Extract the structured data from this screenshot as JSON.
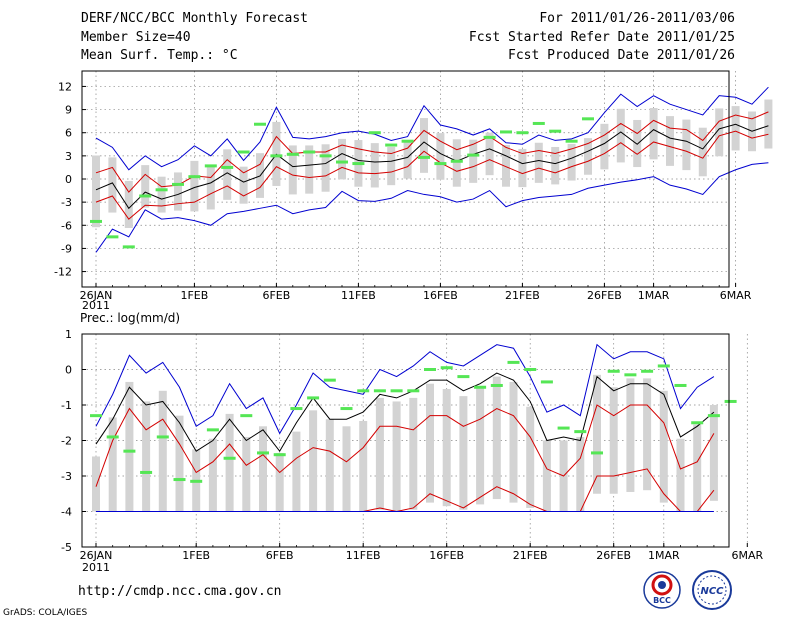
{
  "header": {
    "left": [
      "DERF/NCC/BCC Monthly Forecast",
      "Member Size=40",
      "Mean Surf. Temp.: °C"
    ],
    "right": [
      "For 2011/01/26-2011/03/06",
      "Fcst Started Refer Date 2011/01/25",
      "Fcst Produced Date 2011/01/26"
    ]
  },
  "footer": {
    "url": "http://cmdp.ncc.cma.gov.cn",
    "credit": "GrADS: COLA/IGES",
    "logo1_text": "BCC",
    "logo2_text": "NCC"
  },
  "colors": {
    "grid": "#888888",
    "box": "#d3d3d3",
    "obs": "#55e655",
    "mean": "#000000",
    "spread": "#d40000",
    "envelope": "#0000d0"
  },
  "chart_data": [
    {
      "type": "line",
      "title": "Mean Surf. Temp.: °C",
      "x_ticks": [
        "26JAN",
        "1FEB",
        "6FEB",
        "11FEB",
        "16FEB",
        "21FEB",
        "26FEB",
        "1MAR",
        "6MAR"
      ],
      "x_tick_days": [
        0,
        6,
        11,
        16,
        21,
        26,
        31,
        34,
        39
      ],
      "year_label": "2011",
      "ylim": [
        -14,
        14
      ],
      "yticks": [
        -12,
        -9,
        -6,
        -3,
        0,
        3,
        6,
        9,
        12
      ],
      "series": [
        {
          "name": "ensemble max",
          "values": [
            5.3,
            4.1,
            1.2,
            3.0,
            1.6,
            2.5,
            4.3,
            3.0,
            5.2,
            2.4,
            4.8,
            9.3,
            5.4,
            5.2,
            5.5,
            6.0,
            6.2,
            5.8,
            5.0,
            5.5,
            9.5,
            7.0,
            6.5,
            5.7,
            6.5,
            4.7,
            4.5,
            5.7,
            5.0,
            5.2,
            6.0,
            8.6,
            11.0,
            9.4,
            10.8,
            9.7,
            9.0,
            8.3,
            10.8,
            10.6,
            9.7,
            11.9
          ]
        },
        {
          "name": "upper spread",
          "values": [
            0.8,
            1.5,
            -1.7,
            0.6,
            -1.0,
            -0.8,
            0.4,
            0.2,
            2.5,
            0.8,
            1.9,
            5.5,
            3.3,
            3.5,
            3.5,
            4.4,
            3.9,
            3.5,
            3.3,
            4.0,
            6.3,
            4.9,
            3.8,
            4.5,
            5.5,
            4.1,
            3.3,
            3.7,
            3.3,
            3.9,
            4.6,
            5.7,
            7.2,
            5.9,
            7.6,
            6.6,
            6.4,
            5.0,
            7.5,
            8.3,
            7.8,
            8.7
          ]
        },
        {
          "name": "ensemble mean",
          "values": [
            -1.4,
            -0.5,
            -3.8,
            -1.7,
            -2.6,
            -2.0,
            -1.1,
            -0.5,
            0.8,
            -0.4,
            0.4,
            3.2,
            1.6,
            1.8,
            2.0,
            3.3,
            2.4,
            2.2,
            2.3,
            2.8,
            4.8,
            3.3,
            2.3,
            3.2,
            3.9,
            3.0,
            2.0,
            2.4,
            2.0,
            2.7,
            3.6,
            4.6,
            6.1,
            4.5,
            6.4,
            5.3,
            4.9,
            3.9,
            6.5,
            7.1,
            6.2,
            6.9
          ]
        },
        {
          "name": "lower spread",
          "values": [
            -3.0,
            -2.2,
            -5.2,
            -3.4,
            -3.5,
            -3.2,
            -3.0,
            -1.9,
            -0.9,
            -2.2,
            -1.1,
            1.6,
            0.5,
            0.2,
            0.4,
            1.5,
            0.8,
            0.7,
            0.9,
            1.6,
            3.6,
            2.1,
            1.0,
            1.6,
            2.5,
            1.6,
            0.7,
            1.4,
            0.8,
            1.6,
            2.3,
            3.3,
            4.7,
            3.2,
            4.8,
            4.2,
            3.6,
            2.7,
            5.6,
            6.2,
            5.3,
            5.8
          ]
        },
        {
          "name": "ensemble min",
          "values": [
            -9.5,
            -6.5,
            -7.5,
            -4.0,
            -5.2,
            -5.0,
            -5.4,
            -6.0,
            -4.5,
            -4.2,
            -3.8,
            -3.4,
            -4.5,
            -4.0,
            -3.7,
            -1.6,
            -2.8,
            -2.9,
            -2.5,
            -1.5,
            -2.0,
            -2.3,
            -3.0,
            -2.6,
            -1.5,
            -3.6,
            -2.8,
            -2.4,
            -2.2,
            -2.0,
            -1.2,
            -0.8,
            -0.4,
            -0.1,
            0.3,
            -0.8,
            -1.3,
            -2.0,
            0.3,
            1.2,
            1.9,
            2.1
          ]
        },
        {
          "name": "observed",
          "values": [
            -5.5,
            -7.5,
            -8.8,
            -2.2,
            -1.4,
            -0.7,
            0.3,
            1.7,
            1.5,
            3.5,
            7.1,
            3.0,
            3.2,
            3.5,
            3.0,
            2.2,
            2.0,
            6.0,
            4.4,
            4.9,
            2.8,
            2.0,
            2.3,
            3.1,
            5.4,
            6.1,
            6.0,
            7.2,
            6.2,
            4.9,
            7.8
          ]
        }
      ]
    },
    {
      "type": "line",
      "title": "Prec.: log(mm/d)",
      "x_ticks": [
        "26JAN",
        "1FEB",
        "6FEB",
        "11FEB",
        "16FEB",
        "21FEB",
        "26FEB",
        "1MAR",
        "6MAR"
      ],
      "x_tick_days": [
        0,
        6,
        11,
        16,
        21,
        26,
        31,
        34,
        39
      ],
      "year_label": "2011",
      "ylim": [
        -5,
        1
      ],
      "yticks": [
        -5,
        -4,
        -3,
        -2,
        -1,
        0,
        1
      ],
      "series": [
        {
          "name": "ensemble max",
          "values": [
            -1.6,
            -0.7,
            0.4,
            -0.1,
            0.2,
            -0.5,
            -1.6,
            -1.3,
            -0.4,
            -1.1,
            -0.8,
            -1.8,
            -1.0,
            -0.1,
            -0.5,
            -0.6,
            -0.7,
            0.0,
            -0.2,
            0.1,
            0.5,
            0.2,
            0.1,
            0.4,
            0.7,
            0.6,
            -0.2,
            -1.2,
            -1.0,
            -1.3,
            0.7,
            0.3,
            0.5,
            0.5,
            0.3,
            -1.1,
            -0.5,
            -0.2
          ]
        },
        {
          "name": "ensemble mean",
          "values": [
            -2.1,
            -1.4,
            -0.5,
            -1.0,
            -0.9,
            -1.5,
            -2.3,
            -2.0,
            -1.4,
            -2.0,
            -1.7,
            -2.3,
            -1.5,
            -0.8,
            -1.4,
            -1.4,
            -1.2,
            -0.7,
            -0.8,
            -0.6,
            -0.3,
            -0.3,
            -0.6,
            -0.4,
            -0.1,
            -0.3,
            -0.9,
            -2.0,
            -1.9,
            -2.0,
            -0.2,
            -0.6,
            -0.4,
            -0.4,
            -0.7,
            -1.9,
            -1.6,
            -1.2
          ]
        },
        {
          "name": "upper spread",
          "values": [
            -3.3,
            -2.0,
            -1.1,
            -1.7,
            -1.4,
            -2.1,
            -2.9,
            -2.6,
            -2.1,
            -2.7,
            -2.4,
            -2.9,
            -2.5,
            -2.2,
            -2.3,
            -2.6,
            -2.2,
            -1.6,
            -1.6,
            -1.7,
            -1.3,
            -1.3,
            -1.6,
            -1.4,
            -1.1,
            -1.3,
            -1.9,
            -2.8,
            -3.0,
            -2.5,
            -1.0,
            -1.3,
            -1.0,
            -1.0,
            -1.5,
            -2.8,
            -2.6,
            -1.8
          ]
        },
        {
          "name": "lower spread",
          "values": [
            -4.0,
            -4.0,
            -4.0,
            -4.0,
            -4.0,
            -4.0,
            -4.0,
            -4.0,
            -4.0,
            -4.0,
            -4.0,
            -4.0,
            -4.0,
            -4.0,
            -4.0,
            -4.0,
            -4.0,
            -3.9,
            -4.0,
            -3.9,
            -3.5,
            -3.7,
            -3.9,
            -3.6,
            -3.3,
            -3.5,
            -3.8,
            -4.0,
            -4.0,
            -4.0,
            -3.0,
            -3.0,
            -2.9,
            -2.8,
            -3.5,
            -4.0,
            -4.0,
            -3.4
          ]
        },
        {
          "name": "ensemble min",
          "values": [
            -4.0,
            -4.0,
            -4.0,
            -4.0,
            -4.0,
            -4.0,
            -4.0,
            -4.0,
            -4.0,
            -4.0,
            -4.0,
            -4.0,
            -4.0,
            -4.0,
            -4.0,
            -4.0,
            -4.0,
            -4.0,
            -4.0,
            -4.0,
            -4.0,
            -4.0,
            -4.0,
            -4.0,
            -4.0,
            -4.0,
            -4.0,
            -4.0,
            -4.0,
            -4.0,
            -4.0,
            -4.0,
            -4.0,
            -4.0,
            -4.0,
            -4.0,
            -4.0,
            -4.0
          ]
        },
        {
          "name": "observed",
          "values": [
            -1.3,
            -1.9,
            -2.3,
            -2.9,
            -1.9,
            -3.1,
            -3.15,
            -1.7,
            -2.5,
            -1.3,
            -2.35,
            -2.4,
            -1.1,
            -0.8,
            -0.3,
            -1.1,
            -0.6,
            -0.6,
            -0.6,
            -0.6,
            0.0,
            0.05,
            -0.2,
            -0.5,
            -0.45,
            0.2,
            0.0,
            -0.35,
            -1.65,
            -1.75,
            -2.35,
            -0.05,
            -0.15,
            -0.05,
            0.1,
            -0.45,
            -1.5,
            -1.3,
            -0.9
          ]
        }
      ]
    }
  ]
}
